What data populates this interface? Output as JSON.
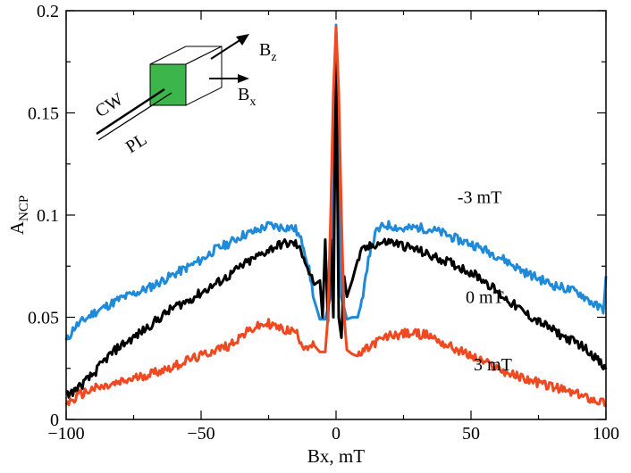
{
  "chart_data": {
    "type": "line",
    "title": "",
    "xlabel": "Bx, mT",
    "ylabel": "A",
    "ylabel_sub": "NCP",
    "xlim": [
      -100,
      100
    ],
    "ylim": [
      0,
      0.2
    ],
    "xticks": [
      -100,
      -50,
      0,
      50,
      100
    ],
    "xtick_labels": [
      "−100",
      "−50",
      "0",
      "50",
      "100"
    ],
    "yticks": [
      0,
      0.05,
      0.1,
      0.15,
      0.2
    ],
    "ytick_labels": [
      "0",
      "0.05",
      "0.1",
      "0.15",
      "0.2"
    ],
    "grid": false,
    "series": [
      {
        "name": "-3 mT",
        "color": "#1f8ad8",
        "x": [
          -100,
          -97,
          -90,
          -80,
          -70,
          -60,
          -50,
          -45,
          -40,
          -35,
          -30,
          -25,
          -20,
          -17,
          -15,
          -12,
          -10,
          -8,
          -6,
          -4,
          -2,
          -1,
          0,
          1,
          2,
          4,
          6,
          8,
          10,
          12,
          15,
          18,
          20,
          25,
          30,
          35,
          40,
          45,
          50,
          60,
          70,
          80,
          90,
          97,
          99,
          100
        ],
        "y": [
          0.038,
          0.045,
          0.052,
          0.059,
          0.064,
          0.071,
          0.078,
          0.083,
          0.086,
          0.09,
          0.092,
          0.095,
          0.094,
          0.094,
          0.093,
          0.085,
          0.073,
          0.058,
          0.049,
          0.049,
          0.06,
          0.12,
          0.193,
          0.12,
          0.06,
          0.049,
          0.05,
          0.05,
          0.059,
          0.08,
          0.092,
          0.095,
          0.095,
          0.093,
          0.094,
          0.093,
          0.091,
          0.088,
          0.086,
          0.08,
          0.072,
          0.066,
          0.062,
          0.055,
          0.054,
          0.069
        ]
      },
      {
        "name": "0 mT",
        "color": "#000000",
        "x": [
          -100,
          -98,
          -95,
          -90,
          -85,
          -80,
          -75,
          -70,
          -65,
          -60,
          -55,
          -50,
          -45,
          -40,
          -35,
          -30,
          -25,
          -20,
          -15,
          -12,
          -10,
          -8,
          -6,
          -5,
          -4,
          -3,
          -2,
          -1,
          0,
          1,
          2,
          3,
          4,
          5,
          6,
          8,
          10,
          15,
          20,
          25,
          30,
          35,
          40,
          45,
          50,
          55,
          60,
          65,
          70,
          75,
          80,
          85,
          90,
          95,
          100
        ],
        "y": [
          0.012,
          0.013,
          0.016,
          0.022,
          0.03,
          0.036,
          0.04,
          0.045,
          0.05,
          0.055,
          0.058,
          0.062,
          0.066,
          0.07,
          0.075,
          0.079,
          0.083,
          0.086,
          0.086,
          0.08,
          0.072,
          0.066,
          0.068,
          0.05,
          0.088,
          0.048,
          0.088,
          0.05,
          0.18,
          0.05,
          0.04,
          0.07,
          0.06,
          0.064,
          0.068,
          0.078,
          0.083,
          0.086,
          0.087,
          0.085,
          0.083,
          0.08,
          0.078,
          0.075,
          0.072,
          0.068,
          0.062,
          0.057,
          0.052,
          0.048,
          0.044,
          0.04,
          0.037,
          0.032,
          0.024
        ]
      },
      {
        "name": "3 mT",
        "color": "#f04820",
        "x": [
          -100,
          -98,
          -95,
          -90,
          -85,
          -80,
          -75,
          -70,
          -65,
          -60,
          -55,
          -50,
          -45,
          -40,
          -35,
          -30,
          -25,
          -20,
          -15,
          -12,
          -10,
          -8,
          -6,
          -4,
          -3,
          -2,
          -1,
          0,
          1,
          2,
          3,
          4,
          6,
          8,
          10,
          15,
          20,
          25,
          30,
          35,
          40,
          45,
          50,
          55,
          60,
          65,
          70,
          75,
          80,
          85,
          90,
          95,
          100
        ],
        "y": [
          0.008,
          0.009,
          0.012,
          0.015,
          0.016,
          0.018,
          0.02,
          0.022,
          0.024,
          0.026,
          0.029,
          0.031,
          0.034,
          0.036,
          0.041,
          0.045,
          0.047,
          0.044,
          0.043,
          0.036,
          0.036,
          0.036,
          0.033,
          0.033,
          0.05,
          0.1,
          0.16,
          0.192,
          0.16,
          0.1,
          0.05,
          0.034,
          0.032,
          0.031,
          0.033,
          0.038,
          0.041,
          0.042,
          0.042,
          0.041,
          0.037,
          0.034,
          0.031,
          0.028,
          0.025,
          0.022,
          0.02,
          0.018,
          0.016,
          0.014,
          0.012,
          0.01,
          0.008
        ]
      }
    ],
    "annotations": [
      {
        "text": "-3 mT",
        "x": 45,
        "y": 0.106
      },
      {
        "text": "0 mT",
        "x": 48,
        "y": 0.057
      },
      {
        "text": "3 mT",
        "x": 51,
        "y": 0.024
      }
    ],
    "inset": {
      "cw_label": "CW",
      "pl_label": "PL",
      "bz_label": "B",
      "bz_sub": "z",
      "bx_label": "B",
      "bx_sub": "x",
      "cube_color": "#3cb54a"
    }
  }
}
